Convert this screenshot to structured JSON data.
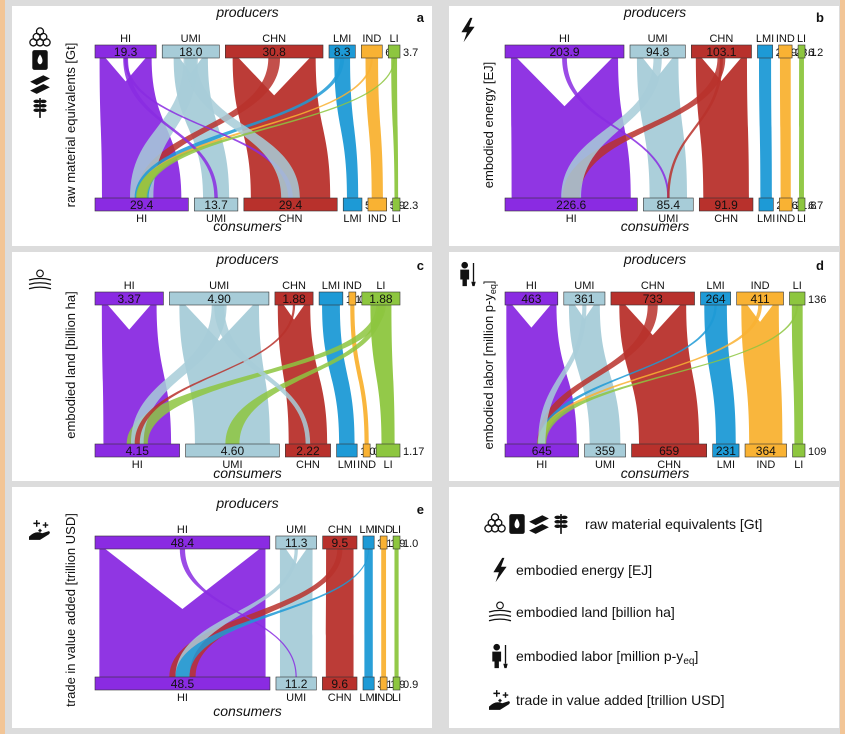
{
  "colors": {
    "HI": "#8a2be2",
    "UMI": "#a7ccd8",
    "CHN": "#b8312c",
    "LMI": "#1d9ad6",
    "IND": "#f9b233",
    "LI": "#8dc63f"
  },
  "labels": {
    "producers": "producers",
    "consumers": "consumers"
  },
  "groups": [
    "HI",
    "UMI",
    "CHN",
    "LMI",
    "IND",
    "LI"
  ],
  "panels": [
    {
      "id": "a",
      "ylabel": "raw material equivalents [Gt]",
      "icons": [
        "minerals-icon",
        "fossil-fuel-icon",
        "metal-ore-icon",
        "biomass-icon"
      ],
      "prod": [
        "19.3",
        "18.0",
        "30.8",
        "8.3",
        "6.6",
        "3.7"
      ],
      "cons": [
        "29.4",
        "13.7",
        "29.4",
        "5.9",
        "5.9",
        "2.3"
      ]
    },
    {
      "id": "b",
      "ylabel": "embodied energy [EJ]",
      "icons": [
        "lightning-icon"
      ],
      "prod": [
        "203.9",
        "94.8",
        "103.1",
        "25.9",
        "23.1",
        "6.2"
      ],
      "cons": [
        "226.6",
        "85.4",
        "91.9",
        "24.6",
        "21.8",
        "6.7"
      ]
    },
    {
      "id": "c",
      "ylabel": "embodied land [billion ha]",
      "icons": [
        "land-icon"
      ],
      "prod": [
        "3.37",
        "4.90",
        "1.88",
        "1.17",
        "0.30",
        "1.88"
      ],
      "cons": [
        "4.15",
        "4.60",
        "2.22",
        "1.01",
        "0.34",
        "1.17"
      ]
    },
    {
      "id": "d",
      "ylabel": "embodied labor [million p-y",
      "ylabel_sub": "eq",
      "ylabel_end": "]",
      "icons": [
        "worker-icon"
      ],
      "prod": [
        "463",
        "361",
        "733",
        "264",
        "411",
        "136"
      ],
      "cons": [
        "645",
        "359",
        "659",
        "231",
        "364",
        "109"
      ]
    },
    {
      "id": "e",
      "ylabel": "trade in value added [trillion USD]",
      "icons": [
        "value-added-icon"
      ],
      "prod": [
        "48.4",
        "11.3",
        "9.5",
        "3.1",
        "1.9",
        "1.0"
      ],
      "cons": [
        "48.5",
        "11.2",
        "9.6",
        "3.1",
        "1.9",
        "0.9"
      ]
    }
  ],
  "legend": [
    {
      "icons": [
        "minerals-icon",
        "fossil-fuel-icon",
        "metal-ore-icon",
        "biomass-icon"
      ],
      "text": "raw material equivalents [Gt]"
    },
    {
      "icons": [
        "lightning-icon"
      ],
      "text": "embodied energy [EJ]"
    },
    {
      "icons": [
        "land-icon"
      ],
      "text": "embodied land [billion ha]"
    },
    {
      "icons": [
        "worker-icon"
      ],
      "text": "embodied labor [million p-y",
      "sub": "eq",
      "end": "]"
    },
    {
      "icons": [
        "value-added-icon"
      ],
      "text": "trade in value added [trillion USD]"
    }
  ]
}
